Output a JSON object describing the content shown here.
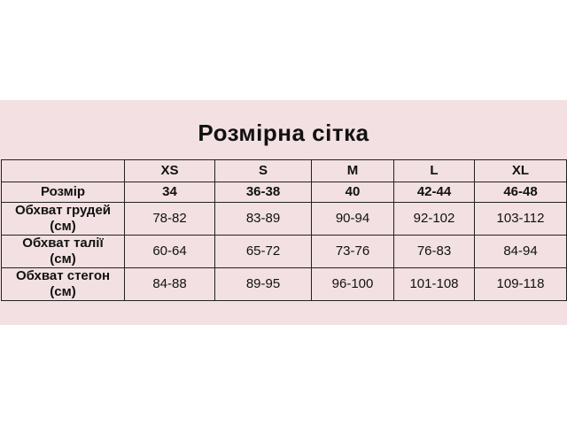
{
  "title": "Розмірна сітка",
  "table": {
    "header": [
      "",
      "XS",
      "S",
      "M",
      "L",
      "XL"
    ],
    "rows": [
      {
        "label": "Розмір",
        "unit": "",
        "values": [
          "34",
          "36-38",
          "40",
          "42-44",
          "46-48"
        ]
      },
      {
        "label": "Обхват грудей",
        "unit": "(см)",
        "values": [
          "78-82",
          "83-89",
          "90-94",
          "92-102",
          "103-112"
        ]
      },
      {
        "label": "Обхват талії",
        "unit": "(см)",
        "values": [
          "60-64",
          "65-72",
          "73-76",
          "76-83",
          "84-94"
        ]
      },
      {
        "label": "Обхват стегон",
        "unit": "(см)",
        "values": [
          "84-88",
          "89-95",
          "96-100",
          "101-108",
          "109-118"
        ]
      }
    ]
  },
  "colors": {
    "background": "#f2e0e2",
    "text": "#111111"
  }
}
